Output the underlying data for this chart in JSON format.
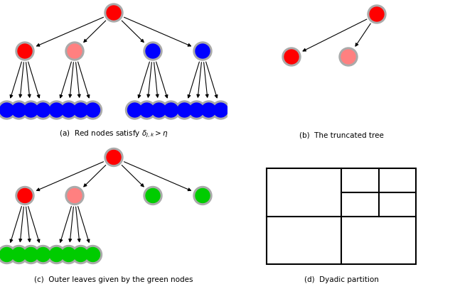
{
  "fig_width": 6.4,
  "fig_height": 4.07,
  "background": "#ffffff",
  "colors": {
    "red_dark": "#ff0000",
    "red_light": "#ff8080",
    "blue": "#0000ff",
    "green": "#00cc00",
    "gray_edge": "#aaaaaa"
  },
  "caption_a": "(a)  Red nodes satisfy $\\delta_{j,k} > \\eta$",
  "caption_b": "(b)  The truncated tree",
  "caption_c": "(c)  Outer leaves given by the green nodes",
  "caption_d": "(d)  Dyadic partition"
}
